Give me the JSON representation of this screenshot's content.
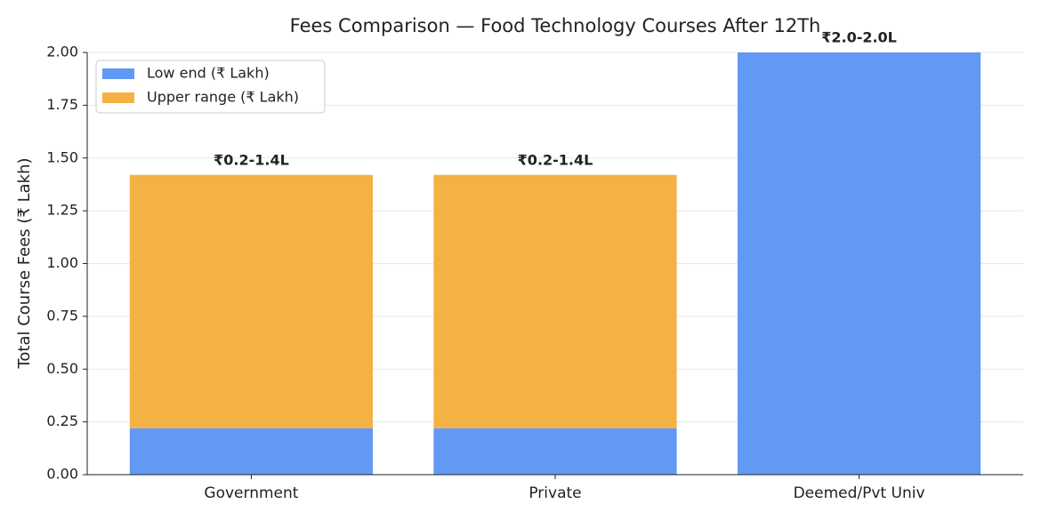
{
  "chart_data": {
    "type": "stacked_bar",
    "title": "Fees Comparison — Food Technology Courses After 12Th",
    "y_label": "Total Course Fees (₹ Lakh)",
    "categories": [
      "Government",
      "Private",
      "Deemed/Pvt Univ"
    ],
    "series": [
      {
        "name": "Low end (₹ Lakh)",
        "color": "#6199f5",
        "values": [
          0.22,
          0.22,
          2.0
        ],
        "value_labels": [
          "₹0.2-1.4L",
          "₹0.2-1.4L",
          "₹2.0-2.0L"
        ]
      },
      {
        "name": "Upper range (₹ Lakh)",
        "color": "#f4b244",
        "values": [
          1.2,
          1.2,
          0
        ]
      }
    ],
    "ylim": [
      0,
      2.0
    ],
    "yticks": [
      {
        "value": 0,
        "label": "0.00"
      },
      {
        "value": 0.25,
        "label": "0.25"
      },
      {
        "value": 0.5,
        "label": "0.50"
      },
      {
        "value": 0.75,
        "label": "0.75"
      },
      {
        "value": 1.0,
        "label": "1.00"
      },
      {
        "value": 1.25,
        "label": "1.25"
      },
      {
        "value": 1.5,
        "label": "1.50"
      },
      {
        "value": 1.75,
        "label": "1.75"
      },
      {
        "value": 2.0,
        "label": "2.00"
      }
    ],
    "grid": true,
    "legend": "upper-left"
  }
}
